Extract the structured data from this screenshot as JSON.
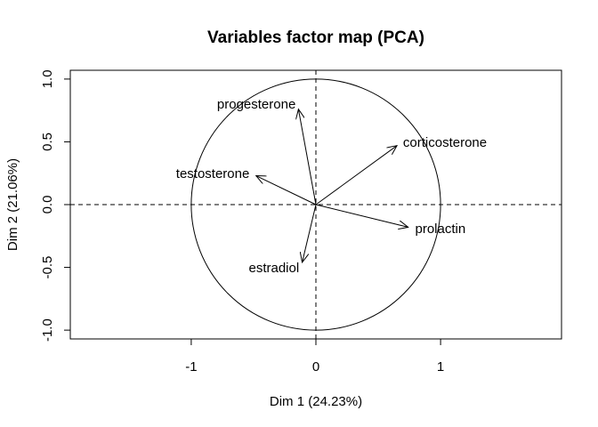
{
  "chart_data": {
    "type": "scatter",
    "title": "Variables factor map (PCA)",
    "xlabel": "Dim 1 (24.23%)",
    "ylabel": "Dim 2 (21.06%)",
    "xlim": [
      -1.97,
      1.97
    ],
    "ylim": [
      -1.07,
      1.07
    ],
    "x_ticks": [
      -1,
      0,
      1
    ],
    "x_tick_labels": [
      "-1",
      "0",
      "1"
    ],
    "y_ticks": [
      -1.0,
      -0.5,
      0.0,
      0.5,
      1.0
    ],
    "y_tick_labels": [
      "-1.0",
      "-0.5",
      "0.0",
      "0.5",
      "1.0"
    ],
    "correlation_circle_radius": 1,
    "reference_lines": [
      "x=0",
      "y=0"
    ],
    "variables": [
      {
        "name": "progesterone",
        "x": -0.14,
        "y": 0.76,
        "label_anchor": "end"
      },
      {
        "name": "corticosterone",
        "x": 0.65,
        "y": 0.47,
        "label_anchor": "start"
      },
      {
        "name": "testosterone",
        "x": -0.48,
        "y": 0.23,
        "label_anchor": "end"
      },
      {
        "name": "prolactin",
        "x": 0.74,
        "y": -0.18,
        "label_anchor": "start"
      },
      {
        "name": "estradiol",
        "x": -0.11,
        "y": -0.46,
        "label_anchor": "end"
      }
    ]
  }
}
